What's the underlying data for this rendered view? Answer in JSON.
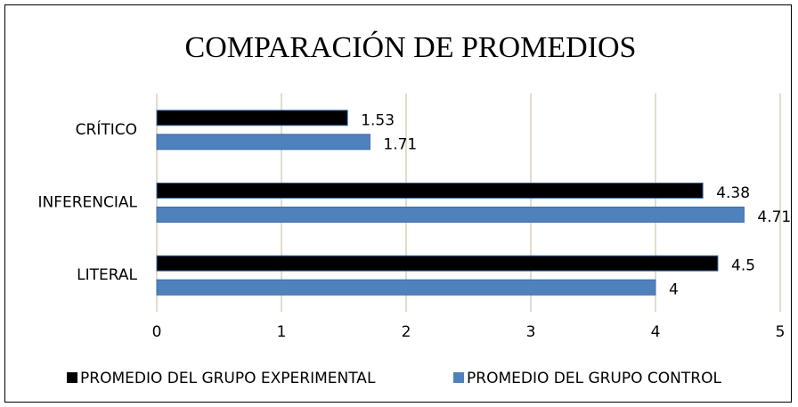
{
  "chart_data": {
    "type": "hbar",
    "title": "COMPARACIÓN DE PROMEDIOS",
    "categories": [
      "CRÍTICO",
      "INFERENCIAL",
      "LITERAL"
    ],
    "series": [
      {
        "name": "PROMEDIO DEL GRUPO EXPERIMENTAL",
        "color": "#000000",
        "values": [
          1.53,
          4.38,
          4.5
        ]
      },
      {
        "name": "PROMEDIO DEL GRUPO CONTROL",
        "color": "#4f81bd",
        "values": [
          1.71,
          4.71,
          4
        ]
      }
    ],
    "xlim": [
      0,
      5
    ],
    "xticks": [
      0,
      1,
      2,
      3,
      4,
      5
    ],
    "grid": true,
    "legend": "bottom"
  }
}
